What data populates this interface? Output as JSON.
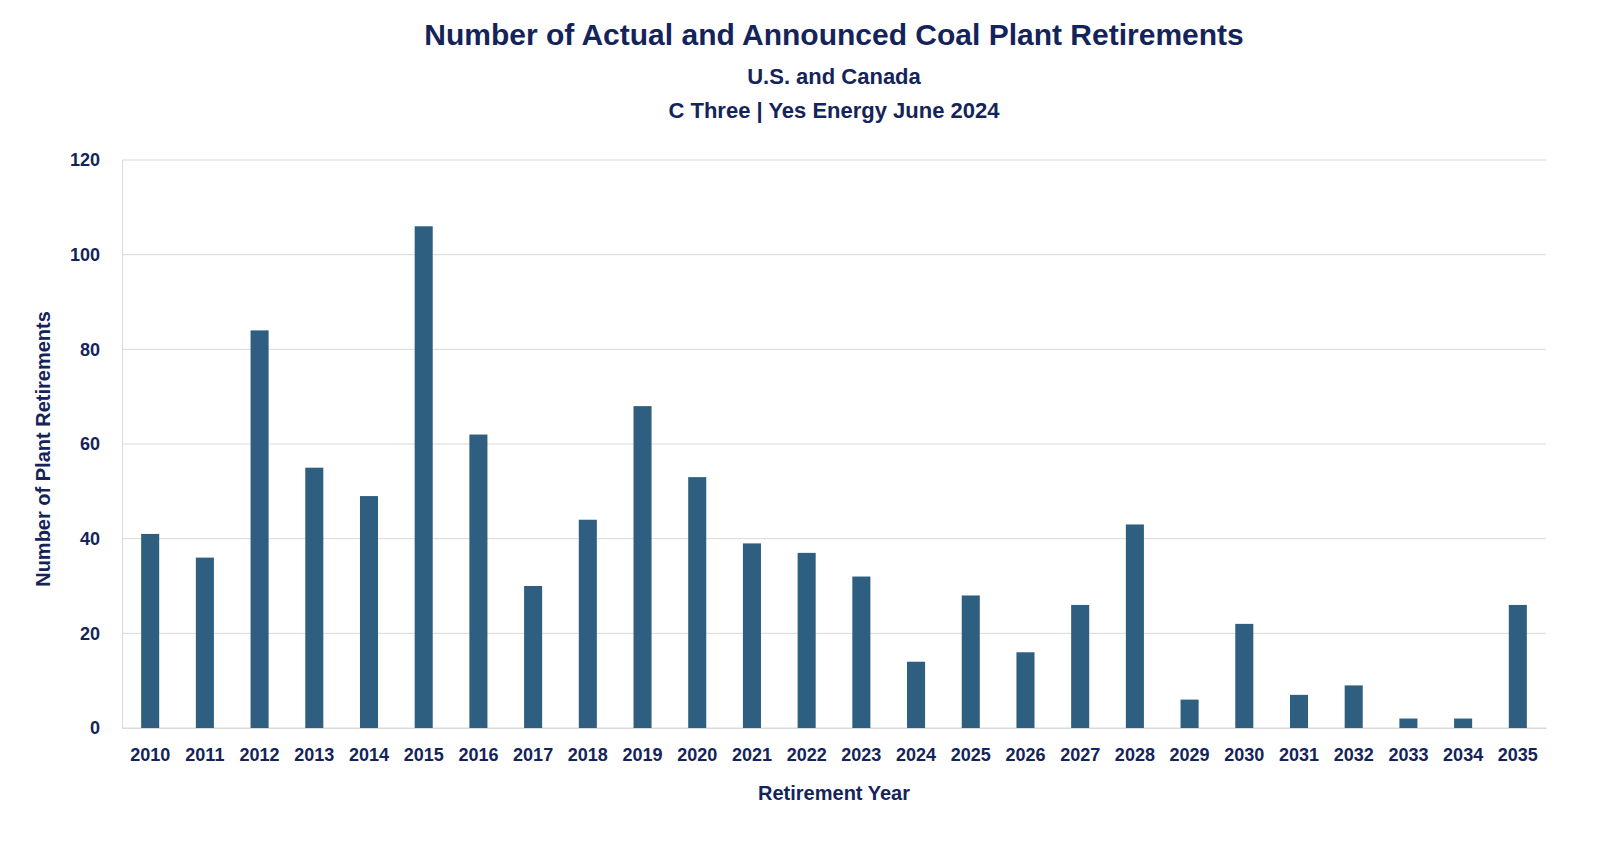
{
  "chart_data": {
    "type": "bar",
    "title": "Number of Actual and Announced Coal Plant Retirements",
    "subtitle": [
      "U.S. and Canada",
      "C Three | Yes Energy June 2024"
    ],
    "x_label": "Retirement Year",
    "y_label": "Number of Plant Retirements",
    "categories": [
      "2010",
      "2011",
      "2012",
      "2013",
      "2014",
      "2015",
      "2016",
      "2017",
      "2018",
      "2019",
      "2020",
      "2021",
      "2022",
      "2023",
      "2024",
      "2025",
      "2026",
      "2027",
      "2028",
      "2029",
      "2030",
      "2031",
      "2032",
      "2033",
      "2034",
      "2035"
    ],
    "values": [
      41,
      36,
      84,
      55,
      49,
      106,
      62,
      30,
      44,
      68,
      53,
      39,
      37,
      32,
      14,
      28,
      16,
      26,
      43,
      6,
      22,
      7,
      9,
      2,
      2,
      26
    ],
    "color": "#2e5f80",
    "ylim": [
      0,
      120
    ],
    "yticks": [
      0,
      20,
      40,
      60,
      80,
      100,
      120
    ],
    "grid": true
  }
}
